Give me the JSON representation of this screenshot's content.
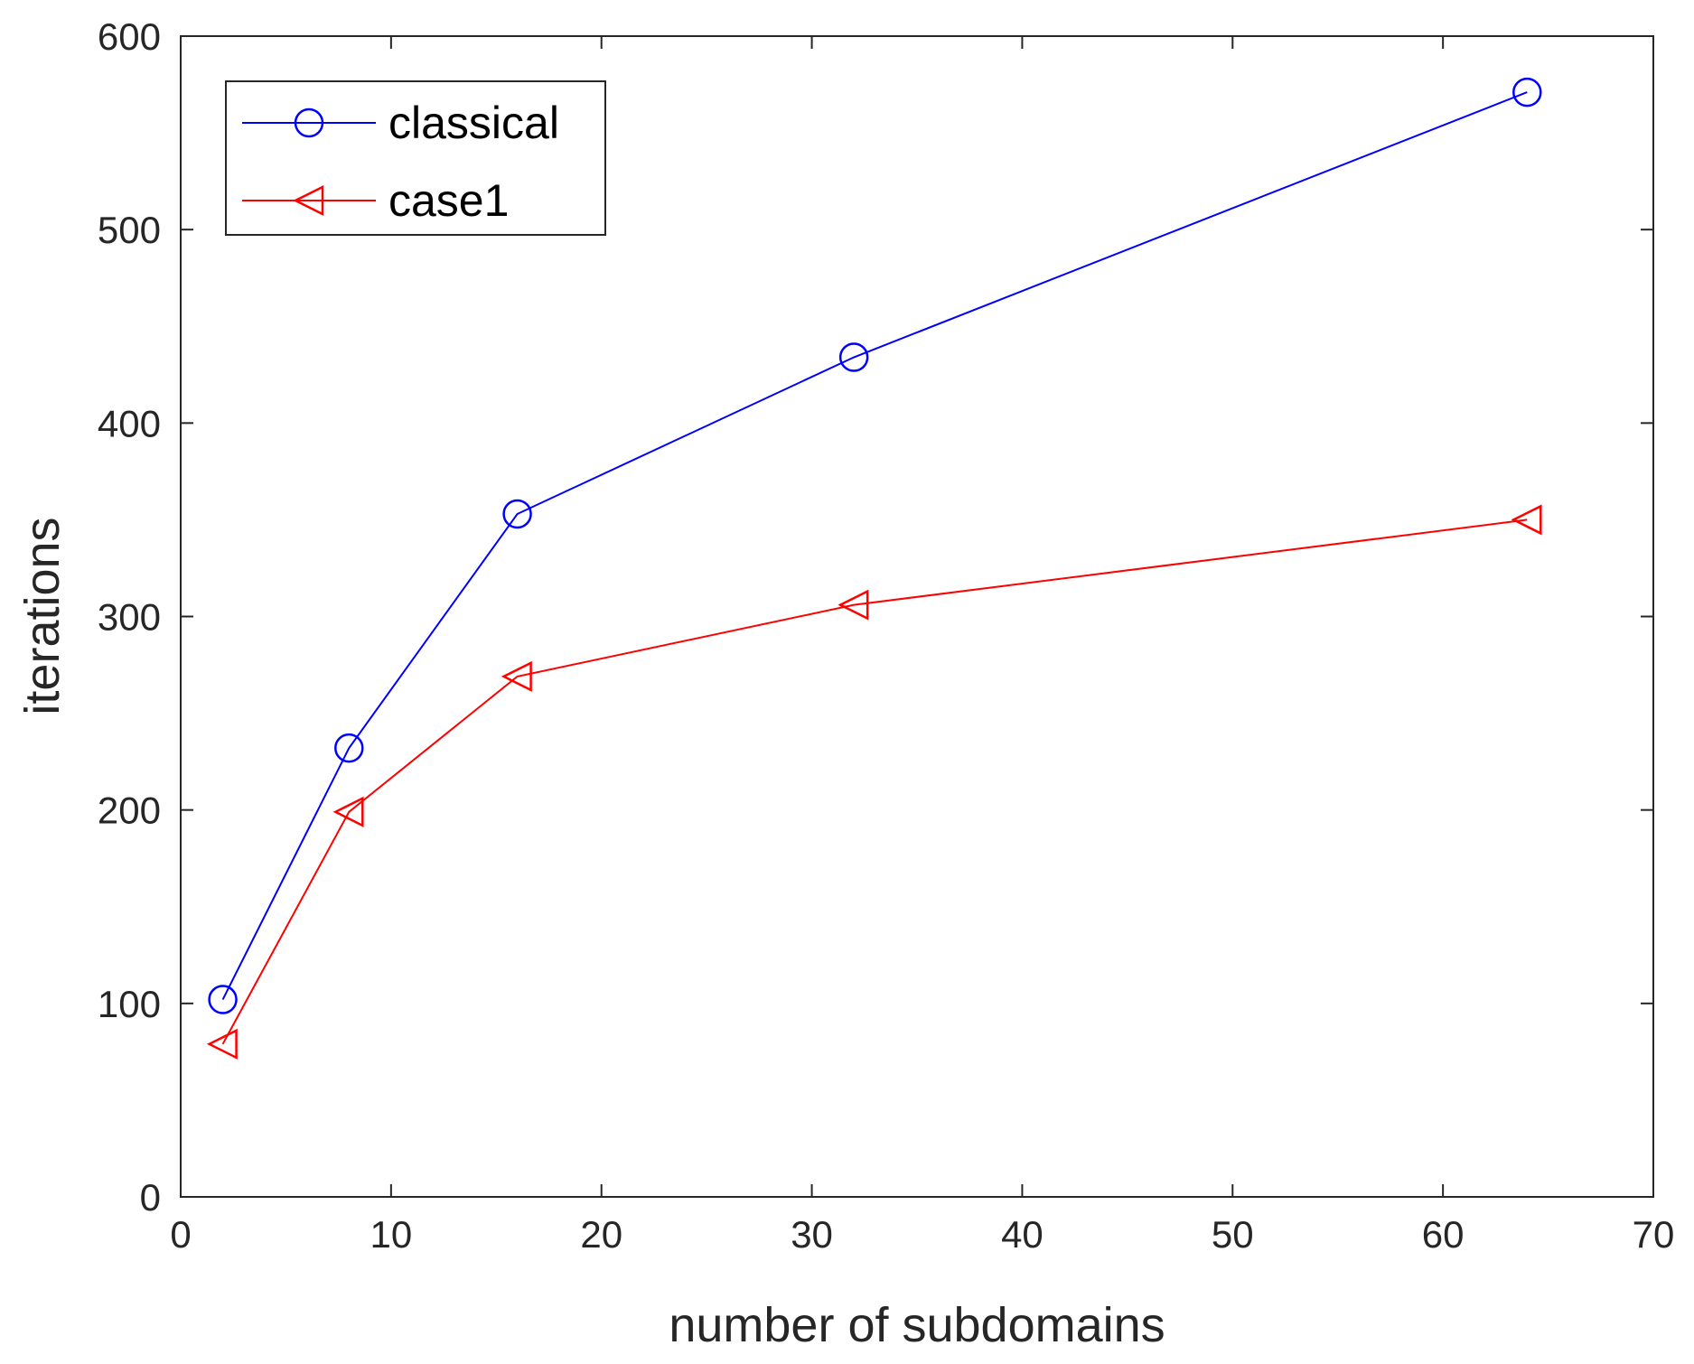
{
  "chart_data": {
    "type": "line",
    "title": "",
    "xlabel": "number of subdomains",
    "ylabel": "iterations",
    "xlim": [
      0,
      70
    ],
    "ylim": [
      0,
      600
    ],
    "xticks": [
      0,
      10,
      20,
      30,
      40,
      50,
      60,
      70
    ],
    "yticks": [
      0,
      100,
      200,
      300,
      400,
      500,
      600
    ],
    "grid": false,
    "legend_position": "top-left",
    "series": [
      {
        "name": "classical",
        "color": "#0000ff",
        "marker": "circle-icon",
        "x": [
          2,
          8,
          16,
          32,
          64
        ],
        "values": [
          102,
          232,
          353,
          434,
          571
        ]
      },
      {
        "name": "case1",
        "color": "#ff0000",
        "marker": "triangle-left-icon",
        "x": [
          2,
          8,
          16,
          32,
          64
        ],
        "values": [
          79,
          199,
          269,
          306,
          350
        ]
      }
    ]
  }
}
